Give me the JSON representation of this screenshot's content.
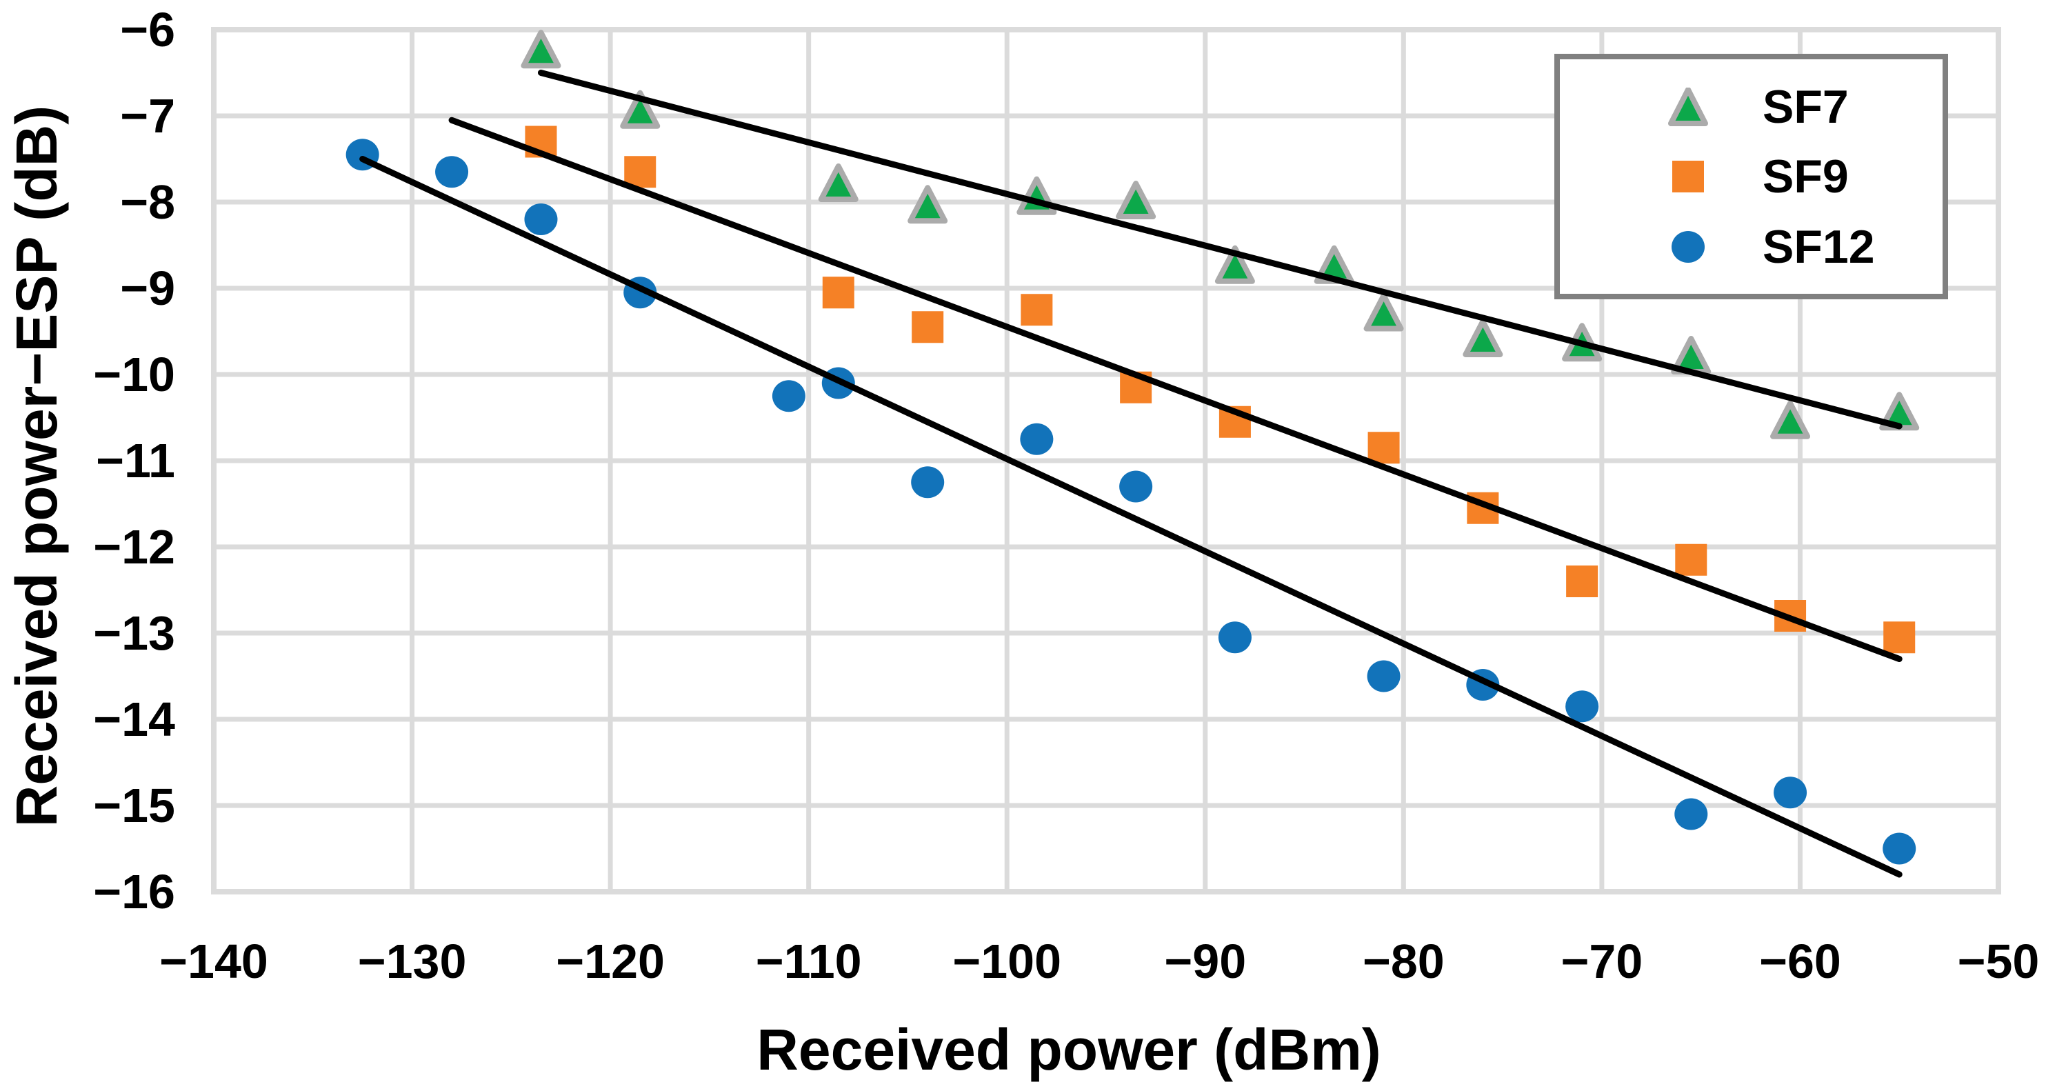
{
  "chart_data": {
    "type": "scatter",
    "title": "",
    "xlabel": "Received power (dBm)",
    "ylabel": "Received power−ESP (dB)",
    "xlim": [
      -140,
      -50
    ],
    "ylim": [
      -16,
      -6
    ],
    "x_ticks": [
      -140,
      -130,
      -120,
      -110,
      -100,
      -90,
      -80,
      -70,
      -60,
      -50
    ],
    "y_ticks": [
      -6,
      -7,
      -8,
      -9,
      -10,
      -11,
      -12,
      -13,
      -14,
      -15,
      -16
    ],
    "grid": true,
    "gridline_color": "#DBDBDB",
    "trendline_color": "#000000",
    "legend_position": "top-right",
    "legend_border_color": "#808080",
    "series": [
      {
        "name": "SF7",
        "marker": "triangle",
        "color": "#0CA84A",
        "outline": "#ABABAB",
        "points": [
          [
            -123.5,
            -6.25
          ],
          [
            -118.5,
            -6.95
          ],
          [
            -108.5,
            -7.8
          ],
          [
            -104,
            -8.05
          ],
          [
            -98.5,
            -7.95
          ],
          [
            -93.5,
            -8.0
          ],
          [
            -88.5,
            -8.75
          ],
          [
            -83.5,
            -8.75
          ],
          [
            -81,
            -9.3
          ],
          [
            -76,
            -9.6
          ],
          [
            -71,
            -9.65
          ],
          [
            -65.5,
            -9.8
          ],
          [
            -60.5,
            -10.55
          ],
          [
            -55,
            -10.45
          ]
        ],
        "trendline": {
          "x1": -123.5,
          "y1": -6.5,
          "x2": -55,
          "y2": -10.6
        }
      },
      {
        "name": "SF9",
        "marker": "square",
        "color": "#F58126",
        "outline": "none",
        "points": [
          [
            -123.5,
            -7.3
          ],
          [
            -118.5,
            -7.65
          ],
          [
            -108.5,
            -9.05
          ],
          [
            -104,
            -9.45
          ],
          [
            -98.5,
            -9.25
          ],
          [
            -93.5,
            -10.15
          ],
          [
            -88.5,
            -10.55
          ],
          [
            -81,
            -10.85
          ],
          [
            -76,
            -11.55
          ],
          [
            -71,
            -12.4
          ],
          [
            -65.5,
            -12.15
          ],
          [
            -60.5,
            -12.8
          ],
          [
            -55,
            -13.05
          ]
        ],
        "trendline": {
          "x1": -128,
          "y1": -7.05,
          "x2": -55,
          "y2": -13.3
        }
      },
      {
        "name": "SF12",
        "marker": "circle",
        "color": "#1273BA",
        "outline": "none",
        "points": [
          [
            -132.5,
            -7.45
          ],
          [
            -128,
            -7.65
          ],
          [
            -123.5,
            -8.2
          ],
          [
            -118.5,
            -9.05
          ],
          [
            -111,
            -10.25
          ],
          [
            -108.5,
            -10.1
          ],
          [
            -104,
            -11.25
          ],
          [
            -98.5,
            -10.75
          ],
          [
            -93.5,
            -11.3
          ],
          [
            -88.5,
            -13.05
          ],
          [
            -81,
            -13.5
          ],
          [
            -76,
            -13.6
          ],
          [
            -71,
            -13.85
          ],
          [
            -65.5,
            -15.1
          ],
          [
            -60.5,
            -14.85
          ],
          [
            -55,
            -15.5
          ]
        ],
        "trendline": {
          "x1": -132.5,
          "y1": -7.5,
          "x2": -55,
          "y2": -15.8
        }
      }
    ]
  }
}
